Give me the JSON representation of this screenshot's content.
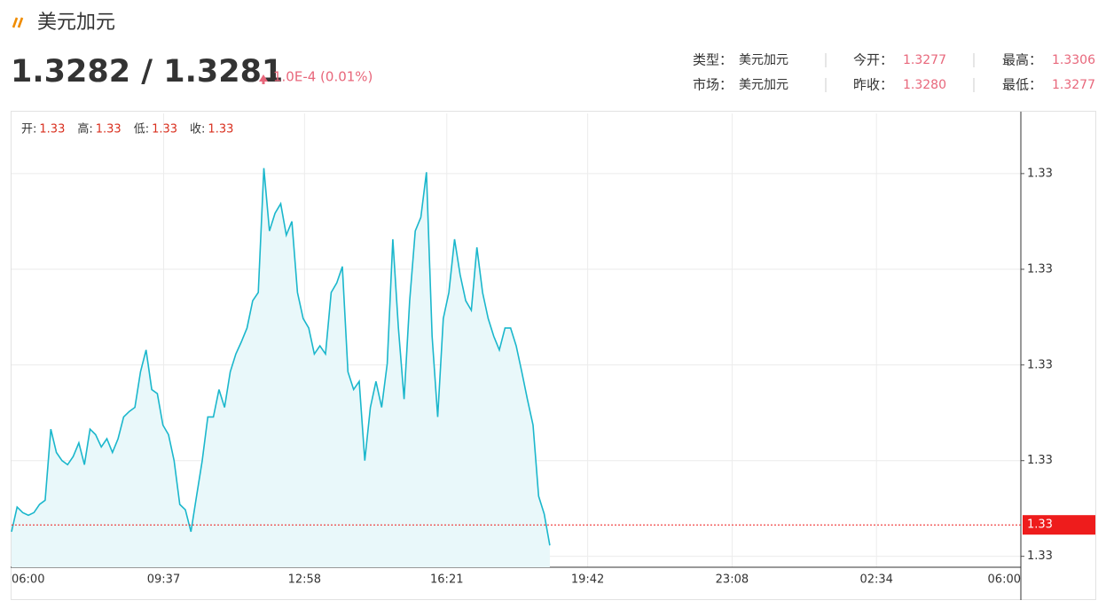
{
  "header": {
    "title": "美元加元",
    "price": "1.3282 / 1.3281",
    "change": "1.0E-4 (0.01%)"
  },
  "quote": [
    [
      {
        "label": "类型：",
        "value": "美元加元"
      },
      {
        "label": "今开：",
        "value": "1.3277"
      },
      {
        "label": "最高：",
        "value": "1.3306"
      }
    ],
    [
      {
        "label": "市场：",
        "value": "美元加元"
      },
      {
        "label": "昨收：",
        "value": "1.3280"
      },
      {
        "label": "最低：",
        "value": "1.3277"
      }
    ]
  ],
  "chart_data": {
    "type": "area",
    "ohlc": [
      {
        "label": "开:",
        "value": "1.33"
      },
      {
        "label": "高:",
        "value": "1.33"
      },
      {
        "label": "低:",
        "value": "1.33"
      },
      {
        "label": "收:",
        "value": "1.33"
      }
    ],
    "x": [
      0,
      8,
      16,
      24,
      32,
      40,
      48,
      56,
      64,
      72,
      80,
      88,
      96,
      104,
      112,
      120,
      128,
      136,
      144,
      152,
      160,
      168,
      176,
      184,
      192,
      200,
      208,
      216,
      224,
      232,
      240,
      248,
      256,
      264,
      272,
      280,
      288,
      296,
      304,
      312,
      320,
      328,
      336,
      344,
      352,
      360,
      368,
      376,
      384,
      392,
      400,
      408,
      416,
      424,
      432,
      440,
      448,
      456,
      464,
      472,
      480,
      488,
      496,
      504,
      512,
      520,
      528,
      536,
      544,
      552,
      560,
      568,
      576,
      584,
      592,
      600,
      608,
      616,
      624,
      632,
      640,
      648,
      656,
      664,
      672,
      680,
      688,
      696,
      704,
      712,
      720,
      728,
      736,
      744,
      752,
      760,
      768
    ],
    "series": [
      {
        "color": "#1bb7cc",
        "fill": "#e9f8fa",
        "values": [
          1.32788,
          1.32806,
          1.32802,
          1.328,
          1.32802,
          1.32808,
          1.32811,
          1.32863,
          1.32846,
          1.3284,
          1.32837,
          1.32843,
          1.32853,
          1.32837,
          1.32863,
          1.32859,
          1.3285,
          1.32856,
          1.32846,
          1.32856,
          1.32872,
          1.32876,
          1.32879,
          1.32905,
          1.32921,
          1.32892,
          1.32889,
          1.32866,
          1.32859,
          1.3284,
          1.32808,
          1.32804,
          1.32788,
          1.32814,
          1.3284,
          1.32872,
          1.32872,
          1.32892,
          1.32879,
          1.32905,
          1.32918,
          1.32927,
          1.32937,
          1.32957,
          1.32963,
          1.33054,
          1.33008,
          1.33021,
          1.33028,
          1.33005,
          1.33015,
          1.32963,
          1.32944,
          1.32937,
          1.32918,
          1.32924,
          1.32918,
          1.32963,
          1.3297,
          1.32982,
          1.32905,
          1.32892,
          1.32898,
          1.3284,
          1.32879,
          1.32898,
          1.32879,
          1.32911,
          1.33002,
          1.32937,
          1.32885,
          1.32957,
          1.33008,
          1.33018,
          1.33051,
          1.32931,
          1.32872,
          1.32944,
          1.32963,
          1.33002,
          1.32976,
          1.32957,
          1.3295,
          1.32996,
          1.32963,
          1.32944,
          1.32931,
          1.32921,
          1.32937,
          1.32937,
          1.32924,
          1.32905,
          1.32885,
          1.32866,
          1.32814,
          1.32801,
          1.32778
        ]
      }
    ],
    "xlim": [
      0,
      1440
    ],
    "xticks": [
      {
        "value": 0,
        "label": "06:00"
      },
      {
        "value": 217,
        "label": "09:37"
      },
      {
        "value": 418,
        "label": "12:58"
      },
      {
        "value": 621,
        "label": "16:21"
      },
      {
        "value": 822,
        "label": "19:42"
      },
      {
        "value": 1028,
        "label": "23:08"
      },
      {
        "value": 1234,
        "label": "02:34"
      },
      {
        "value": 1440,
        "label": "06:00"
      }
    ],
    "ylim": [
      1.32762,
      1.33094
    ],
    "yticks": [
      {
        "value": 1.3277,
        "label": "1.33"
      },
      {
        "value": 1.3284,
        "label": "1.33"
      },
      {
        "value": 1.3291,
        "label": "1.33"
      },
      {
        "value": 1.3298,
        "label": "1.33"
      },
      {
        "value": 1.3305,
        "label": "1.33"
      }
    ],
    "last_price": {
      "value": 1.32793,
      "label": "1.33"
    },
    "last_price_color": "#ee1c1c",
    "grid": true
  }
}
